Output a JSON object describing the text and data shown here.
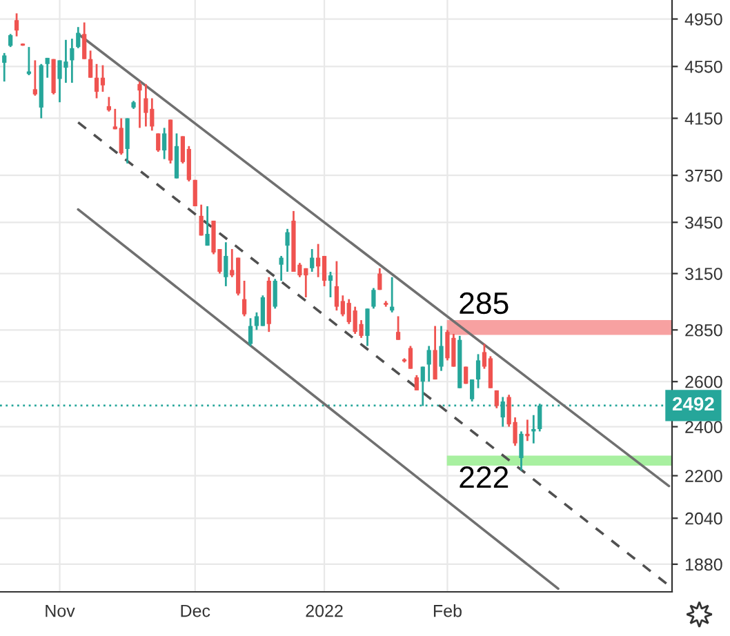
{
  "chart_data": {
    "type": "candlestick",
    "categories": [
      null,
      null,
      null,
      null,
      null,
      null,
      null,
      null,
      null,
      "Nov",
      null,
      null,
      null,
      null,
      null,
      null,
      null,
      null,
      null,
      null,
      null,
      null,
      null,
      null,
      null,
      null,
      null,
      null,
      null,
      null,
      null,
      "Dec",
      null,
      null,
      null,
      null,
      null,
      null,
      null,
      null,
      null,
      null,
      null,
      null,
      null,
      null,
      null,
      null,
      null,
      null,
      null,
      null,
      "2022",
      null,
      null,
      null,
      null,
      null,
      null,
      null,
      null,
      null,
      null,
      null,
      null,
      null,
      null,
      null,
      null,
      null,
      null,
      null,
      "Feb",
      null,
      null,
      null,
      null,
      null,
      null,
      null,
      null,
      null,
      null,
      null,
      null,
      null,
      null,
      null,
      null,
      null,
      null,
      null,
      null,
      null,
      null,
      null,
      null,
      null,
      null,
      null,
      null,
      null,
      null,
      null,
      null,
      null,
      null,
      null,
      null
    ],
    "ohlc": [
      [
        4580,
        4660,
        4430,
        4640
      ],
      [
        4720,
        4820,
        4710,
        4810
      ],
      [
        4940,
        5000,
        4800,
        4850
      ],
      [
        4730,
        4740,
        4720,
        4730
      ],
      [
        4490,
        4710,
        4480,
        4510
      ],
      [
        4370,
        4600,
        4320,
        4330
      ],
      [
        4230,
        4570,
        4150,
        4560
      ],
      [
        4570,
        4620,
        4460,
        4620
      ],
      [
        4610,
        4610,
        4330,
        4340
      ],
      [
        4450,
        4600,
        4270,
        4600
      ],
      [
        4540,
        4770,
        4420,
        4590
      ],
      [
        4600,
        4780,
        4420,
        4700
      ],
      [
        4710,
        4880,
        4700,
        4830
      ],
      [
        4820,
        4920,
        4610,
        4610
      ],
      [
        4610,
        4680,
        4460,
        4460
      ],
      [
        4460,
        4570,
        4300,
        4350
      ],
      [
        4460,
        4560,
        4350,
        4400
      ],
      [
        4240,
        4310,
        4200,
        4210
      ],
      [
        4090,
        4220,
        4070,
        4070
      ],
      [
        4080,
        4150,
        3890,
        3900
      ],
      [
        3930,
        4150,
        3830,
        4150
      ],
      [
        4230,
        4280,
        4220,
        4270
      ],
      [
        4410,
        4430,
        4080,
        4360
      ],
      [
        4300,
        4410,
        4090,
        4190
      ],
      [
        4220,
        4300,
        4060,
        4090
      ],
      [
        4040,
        4040,
        3910,
        3920
      ],
      [
        3920,
        4080,
        3860,
        4040
      ],
      [
        4140,
        4140,
        3830,
        3850
      ],
      [
        3730,
        4040,
        3730,
        3950
      ],
      [
        4020,
        4020,
        3830,
        3840
      ],
      [
        3930,
        3950,
        3710,
        3720
      ],
      [
        3720,
        3720,
        3550,
        3550
      ],
      [
        3490,
        3560,
        3370,
        3370
      ],
      [
        3310,
        3550,
        3310,
        3380
      ],
      [
        3460,
        3460,
        3260,
        3270
      ],
      [
        3290,
        3290,
        3150,
        3160
      ],
      [
        3130,
        3330,
        3080,
        3250
      ],
      [
        3170,
        3290,
        3130,
        3140
      ],
      [
        3240,
        3240,
        3030,
        3040
      ],
      [
        3010,
        3110,
        2920,
        2930
      ],
      [
        2780,
        2910,
        2770,
        2870
      ],
      [
        2870,
        2940,
        2850,
        2920
      ],
      [
        2870,
        3030,
        2870,
        3020
      ],
      [
        3110,
        3130,
        2840,
        2880
      ],
      [
        2970,
        3120,
        2960,
        3110
      ],
      [
        3200,
        3250,
        3110,
        3240
      ],
      [
        3310,
        3410,
        3160,
        3390
      ],
      [
        3460,
        3520,
        3160,
        3160
      ],
      [
        3200,
        3210,
        3130,
        3140
      ],
      [
        3180,
        3180,
        3020,
        3140
      ],
      [
        3180,
        3290,
        3160,
        3240
      ],
      [
        3240,
        3320,
        3130,
        3190
      ],
      [
        3250,
        3250,
        3080,
        3110
      ],
      [
        3110,
        3160,
        3020,
        3140
      ],
      [
        3080,
        3220,
        2950,
        2970
      ],
      [
        3000,
        3030,
        2920,
        2930
      ],
      [
        2990,
        3010,
        2880,
        2890
      ],
      [
        2950,
        2970,
        2830,
        2840
      ],
      [
        2880,
        2900,
        2810,
        2820
      ],
      [
        2820,
        2960,
        2770,
        2960
      ],
      [
        2970,
        3070,
        2960,
        3060
      ],
      [
        3150,
        3180,
        3060,
        3060
      ],
      [
        2990,
        3000,
        2970,
        2980
      ],
      [
        2950,
        3130,
        2940,
        2970
      ],
      [
        2840,
        2920,
        2800,
        2800
      ],
      [
        2700,
        2710,
        2690,
        2700
      ],
      [
        2760,
        2770,
        2660,
        2660
      ],
      [
        2620,
        2630,
        2560,
        2560
      ],
      [
        2600,
        2670,
        2490,
        2670
      ],
      [
        2680,
        2770,
        2600,
        2750
      ],
      [
        2750,
        2870,
        2610,
        2610
      ],
      [
        2670,
        2870,
        2650,
        2770
      ],
      [
        2840,
        2850,
        2700,
        2710
      ],
      [
        2810,
        2830,
        2670,
        2670
      ],
      [
        2570,
        2820,
        2570,
        2800
      ],
      [
        2670,
        2670,
        2590,
        2590
      ],
      [
        2520,
        2610,
        2510,
        2610
      ],
      [
        2610,
        2730,
        2570,
        2700
      ],
      [
        2740,
        2780,
        2660,
        2670
      ],
      [
        2710,
        2720,
        2570,
        2570
      ],
      [
        2560,
        2560,
        2480,
        2490
      ],
      [
        2440,
        2530,
        2400,
        2510
      ],
      [
        2530,
        2540,
        2400,
        2410
      ],
      [
        2420,
        2440,
        2320,
        2330
      ],
      [
        2270,
        2380,
        2220,
        2370
      ],
      [
        2370,
        2430,
        2340,
        2360
      ],
      [
        2380,
        2450,
        2330,
        2390
      ],
      [
        2390,
        2500,
        2380,
        2492
      ],
      null,
      null,
      null,
      null,
      null,
      null,
      null,
      null,
      null,
      null,
      null,
      null,
      null,
      null,
      null,
      null,
      null,
      null,
      null,
      null,
      null
    ],
    "colors": [
      "#26a69a",
      "#26a69a",
      "#ef5350",
      "#ef5350",
      "#26a69a",
      "#ef5350",
      "#26a69a",
      "#26a69a",
      "#ef5350",
      "#26a69a",
      "#26a69a",
      "#26a69a",
      "#26a69a",
      "#ef5350",
      "#ef5350",
      "#ef5350",
      "#ef5350",
      "#ef5350",
      "#ef5350",
      "#ef5350",
      "#26a69a",
      "#26a69a",
      "#ef5350",
      "#ef5350",
      "#ef5350",
      "#ef5350",
      "#26a69a",
      "#ef5350",
      "#26a69a",
      "#ef5350",
      "#ef5350",
      "#ef5350",
      "#ef5350",
      "#26a69a",
      "#ef5350",
      "#ef5350",
      "#26a69a",
      "#ef5350",
      "#ef5350",
      "#ef5350",
      "#26a69a",
      "#26a69a",
      "#26a69a",
      "#ef5350",
      "#26a69a",
      "#26a69a",
      "#26a69a",
      "#ef5350",
      "#ef5350",
      "#ef5350",
      "#26a69a",
      "#ef5350",
      "#ef5350",
      "#26a69a",
      "#ef5350",
      "#ef5350",
      "#ef5350",
      "#ef5350",
      "#ef5350",
      "#26a69a",
      "#26a69a",
      "#ef5350",
      "#ef5350",
      "#26a69a",
      "#ef5350",
      "#ef5350",
      "#ef5350",
      "#ef5350",
      "#26a69a",
      "#26a69a",
      "#ef5350",
      "#26a69a",
      "#ef5350",
      "#ef5350",
      "#26a69a",
      "#ef5350",
      "#26a69a",
      "#26a69a",
      "#ef5350",
      "#ef5350",
      "#ef5350",
      "#26a69a",
      "#ef5350",
      "#ef5350",
      "#26a69a",
      "#ef5350",
      "#26a69a",
      "#26a69a",
      null,
      null,
      null,
      null,
      null,
      null,
      null,
      null,
      null,
      null,
      null,
      null,
      null,
      null,
      null,
      null,
      null,
      null,
      null,
      null,
      null
    ],
    "log": true,
    "ylim": [
      1790,
      5120
    ],
    "yticks": [
      1880,
      2040,
      2200,
      2400,
      2600,
      2850,
      3150,
      3450,
      3750,
      4150,
      4550,
      4950
    ],
    "grid": true,
    "series": [
      {
        "type": "line",
        "color": "#707070",
        "line_style": "solid",
        "values": [
          null,
          null,
          null,
          null,
          null,
          null,
          null,
          null,
          null,
          null,
          null,
          null,
          4820,
          null,
          null,
          null,
          null,
          null,
          null,
          null,
          null,
          null,
          null,
          null,
          null,
          null,
          null,
          null,
          null,
          null,
          null,
          null,
          null,
          null,
          null,
          null,
          null,
          null,
          null,
          null,
          null,
          null,
          null,
          null,
          null,
          null,
          null,
          null,
          null,
          null,
          null,
          null,
          null,
          null,
          null,
          null,
          null,
          null,
          null,
          null,
          null,
          null,
          null,
          null,
          null,
          null,
          null,
          null,
          null,
          null,
          null,
          null,
          null,
          null,
          null,
          null,
          null,
          null,
          null,
          null,
          null,
          null,
          null,
          null,
          null,
          null,
          null,
          null,
          null,
          null,
          null,
          null,
          null,
          null,
          null,
          null,
          null,
          null,
          null,
          null,
          null,
          null,
          null,
          null,
          null,
          null,
          null,
          null,
          2160
        ]
      },
      {
        "type": "line",
        "color": "#505050",
        "line_style": "dashed",
        "values": [
          null,
          null,
          null,
          null,
          null,
          null,
          null,
          null,
          null,
          null,
          null,
          null,
          4120,
          null,
          null,
          null,
          null,
          null,
          null,
          null,
          null,
          null,
          null,
          null,
          null,
          null,
          null,
          null,
          null,
          null,
          null,
          null,
          null,
          null,
          null,
          null,
          null,
          null,
          null,
          null,
          null,
          null,
          null,
          null,
          null,
          null,
          null,
          null,
          null,
          null,
          null,
          null,
          null,
          null,
          null,
          null,
          null,
          null,
          null,
          null,
          null,
          null,
          null,
          null,
          null,
          null,
          null,
          null,
          null,
          null,
          null,
          null,
          null,
          null,
          null,
          null,
          null,
          null,
          null,
          null,
          null,
          null,
          null,
          null,
          null,
          null,
          null,
          null,
          null,
          null,
          null,
          null,
          null,
          null,
          null,
          null,
          null,
          null,
          null,
          null,
          null,
          null,
          null,
          null,
          null,
          null,
          null,
          null,
          1810
        ]
      },
      {
        "type": "line",
        "color": "#707070",
        "line_style": "solid",
        "values": [
          null,
          null,
          null,
          null,
          null,
          null,
          null,
          null,
          null,
          null,
          null,
          null,
          3530,
          null,
          null,
          null,
          null,
          null,
          null,
          null,
          null,
          null,
          null,
          null,
          null,
          null,
          null,
          null,
          null,
          null,
          null,
          null,
          null,
          null,
          null,
          null,
          null,
          null,
          null,
          null,
          null,
          null,
          null,
          null,
          null,
          null,
          null,
          null,
          null,
          null,
          null,
          null,
          null,
          null,
          null,
          null,
          null,
          null,
          null,
          null,
          null,
          null,
          null,
          null,
          null,
          null,
          null,
          null,
          null,
          null,
          null,
          null,
          null,
          null,
          null,
          null,
          null,
          null,
          null,
          null,
          null,
          null,
          null,
          null,
          null,
          null,
          null,
          null,
          null,
          null,
          1800,
          null,
          null,
          null,
          null,
          null,
          null,
          null,
          null,
          null,
          null,
          null,
          null,
          null,
          null,
          null,
          null,
          null,
          null
        ]
      }
    ],
    "ref_lines": [
      {
        "axis": "y",
        "value": 2492,
        "label": "2492",
        "color": "#26a69a",
        "line_style": "dotted"
      }
    ],
    "bands": [
      {
        "axis": "y",
        "from": 2825,
        "to": 2900,
        "label": "285",
        "color": "#f7a1a1"
      },
      {
        "axis": "y",
        "from": 2240,
        "to": 2280,
        "label": "222",
        "color": "#a8f0a0"
      }
    ]
  }
}
